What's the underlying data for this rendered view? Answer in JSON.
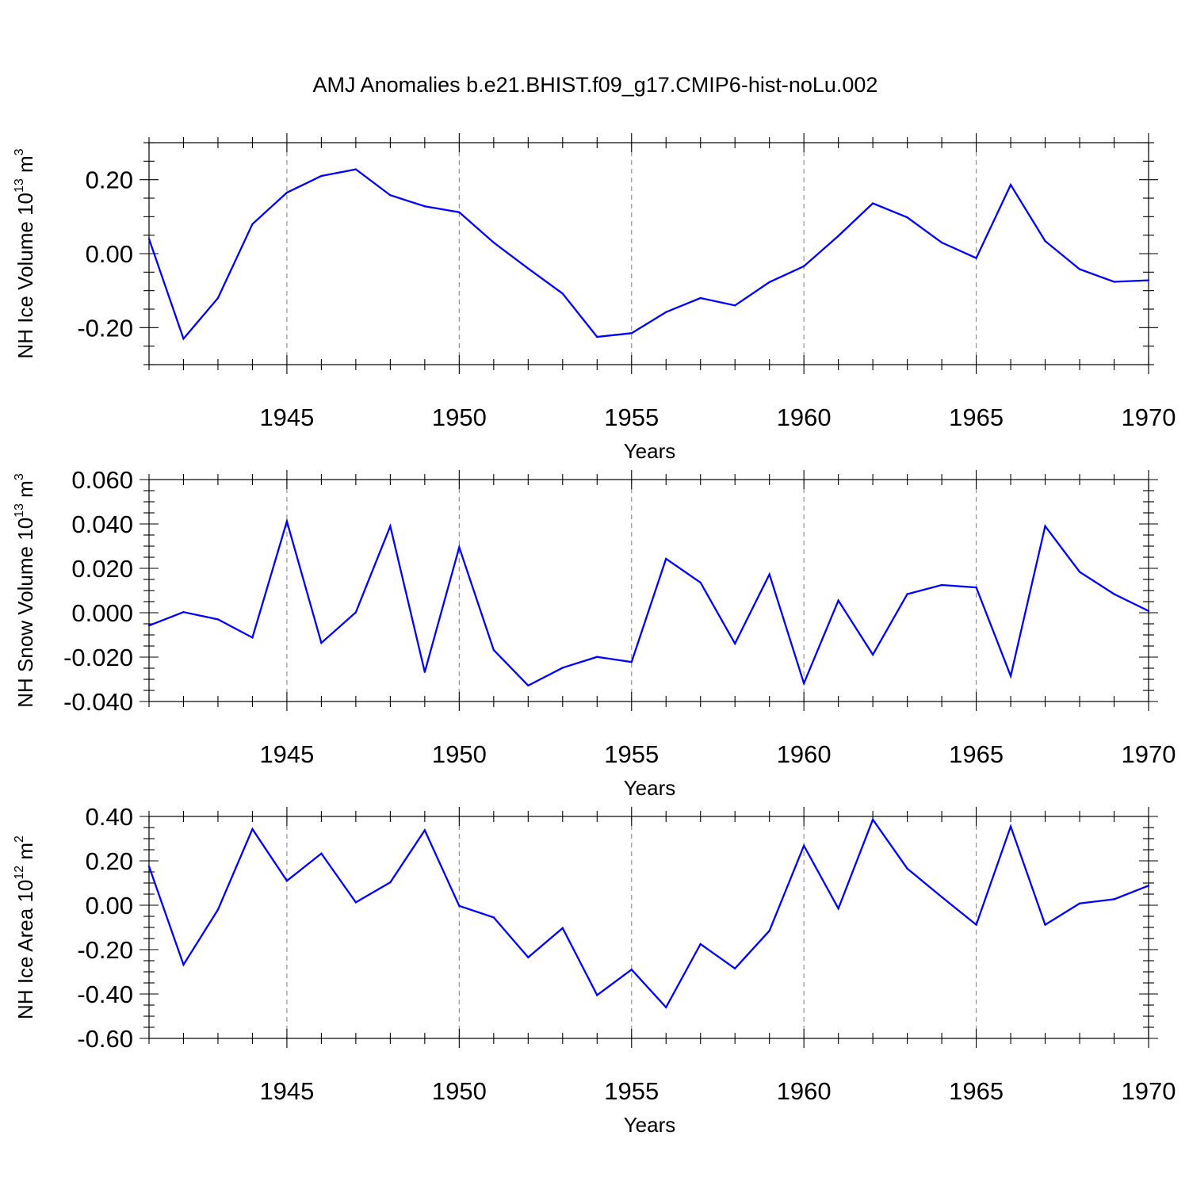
{
  "figure": {
    "title": "AMJ Anomalies b.e21.BHIST.f09_g17.CMIP6-hist-noLu.002"
  },
  "colors": {
    "series": "#0000ff",
    "grid": "#8a8a8a",
    "background": "#ffffff"
  },
  "chart_data": [
    {
      "type": "line",
      "title": "AMJ Anomalies b.e21.BHIST.f09_g17.CMIP6-hist-noLu.002",
      "xlabel": "Years",
      "ylabel": {
        "text": "NH Ice Volume 10",
        "sup": "13",
        "unit": " m",
        "unit_sup": "3"
      },
      "xlim": [
        1941,
        1970
      ],
      "ylim": [
        -0.3,
        0.3
      ],
      "xticks": [
        1945,
        1950,
        1955,
        1960,
        1965,
        1970
      ],
      "xtick_labels": [
        "1945",
        "1950",
        "1955",
        "1960",
        "1965",
        "1970"
      ],
      "xminor_step": 1,
      "yticks": [
        -0.2,
        0.0,
        0.2
      ],
      "ytick_labels": [
        "-0.20",
        "0.00",
        "0.20"
      ],
      "yminor_step": 0.05,
      "grid": "x-major-dashed",
      "x": [
        1941,
        1942,
        1943,
        1944,
        1945,
        1946,
        1947,
        1948,
        1949,
        1950,
        1951,
        1952,
        1953,
        1954,
        1955,
        1956,
        1957,
        1958,
        1959,
        1960,
        1961,
        1962,
        1963,
        1964,
        1965,
        1966,
        1967,
        1968,
        1969,
        1970
      ],
      "y": [
        0.04,
        -0.23,
        -0.12,
        0.08,
        0.165,
        0.21,
        0.228,
        0.158,
        0.128,
        0.112,
        0.03,
        -0.04,
        -0.108,
        -0.225,
        -0.215,
        -0.158,
        -0.12,
        -0.14,
        -0.077,
        -0.034,
        0.048,
        0.136,
        0.098,
        0.03,
        -0.012,
        0.186,
        0.034,
        -0.042,
        -0.076,
        -0.072
      ]
    },
    {
      "type": "line",
      "xlabel": "Years",
      "ylabel": {
        "text": "NH Snow Volume 10",
        "sup": "13",
        "unit": " m",
        "unit_sup": "3"
      },
      "xlim": [
        1941,
        1970
      ],
      "ylim": [
        -0.04,
        0.06
      ],
      "xticks": [
        1945,
        1950,
        1955,
        1960,
        1965,
        1970
      ],
      "xtick_labels": [
        "1945",
        "1950",
        "1955",
        "1960",
        "1965",
        "1970"
      ],
      "xminor_step": 1,
      "yticks": [
        -0.04,
        -0.02,
        0.0,
        0.02,
        0.04,
        0.06
      ],
      "ytick_labels": [
        "-0.040",
        "-0.020",
        "0.000",
        "0.020",
        "0.040",
        "0.060"
      ],
      "yminor_step": 0.005,
      "grid": "x-major-dashed",
      "x": [
        1941,
        1942,
        1943,
        1944,
        1945,
        1946,
        1947,
        1948,
        1949,
        1950,
        1951,
        1952,
        1953,
        1954,
        1955,
        1956,
        1957,
        1958,
        1959,
        1960,
        1961,
        1962,
        1963,
        1964,
        1965,
        1966,
        1967,
        1968,
        1969,
        1970
      ],
      "y": [
        -0.0058,
        0.0003,
        -0.003,
        -0.0112,
        0.0412,
        -0.0136,
        0.0002,
        0.039,
        -0.0267,
        0.0295,
        -0.0168,
        -0.0328,
        -0.0248,
        -0.0199,
        -0.0222,
        0.0243,
        0.0136,
        -0.0139,
        0.0173,
        -0.0318,
        0.0055,
        -0.0189,
        0.0084,
        0.0125,
        0.0114,
        -0.0285,
        0.039,
        0.0184,
        0.0084,
        0.0008
      ]
    },
    {
      "type": "line",
      "xlabel": "Years",
      "ylabel": {
        "text": "NH Ice Area 10",
        "sup": "12",
        "unit": " m",
        "unit_sup": "2"
      },
      "xlim": [
        1941,
        1970
      ],
      "ylim": [
        -0.6,
        0.4
      ],
      "xticks": [
        1945,
        1950,
        1955,
        1960,
        1965,
        1970
      ],
      "xtick_labels": [
        "1945",
        "1950",
        "1955",
        "1960",
        "1965",
        "1970"
      ],
      "xminor_step": 1,
      "yticks": [
        -0.6,
        -0.4,
        -0.2,
        0.0,
        0.2,
        0.4
      ],
      "ytick_labels": [
        "-0.60",
        "-0.40",
        "-0.20",
        "0.00",
        "0.20",
        "0.40"
      ],
      "yminor_step": 0.05,
      "grid": "x-major-dashed",
      "x": [
        1941,
        1942,
        1943,
        1944,
        1945,
        1946,
        1947,
        1948,
        1949,
        1950,
        1951,
        1952,
        1953,
        1954,
        1955,
        1956,
        1957,
        1958,
        1959,
        1960,
        1961,
        1962,
        1963,
        1964,
        1965,
        1966,
        1967,
        1968,
        1969,
        1970
      ],
      "y": [
        0.175,
        -0.268,
        -0.02,
        0.343,
        0.11,
        0.233,
        0.013,
        0.103,
        0.338,
        -0.003,
        -0.055,
        -0.235,
        -0.103,
        -0.405,
        -0.29,
        -0.46,
        -0.175,
        -0.285,
        -0.115,
        0.268,
        -0.015,
        0.386,
        0.165,
        0.037,
        -0.088,
        0.355,
        -0.088,
        0.008,
        0.027,
        0.088
      ]
    }
  ]
}
